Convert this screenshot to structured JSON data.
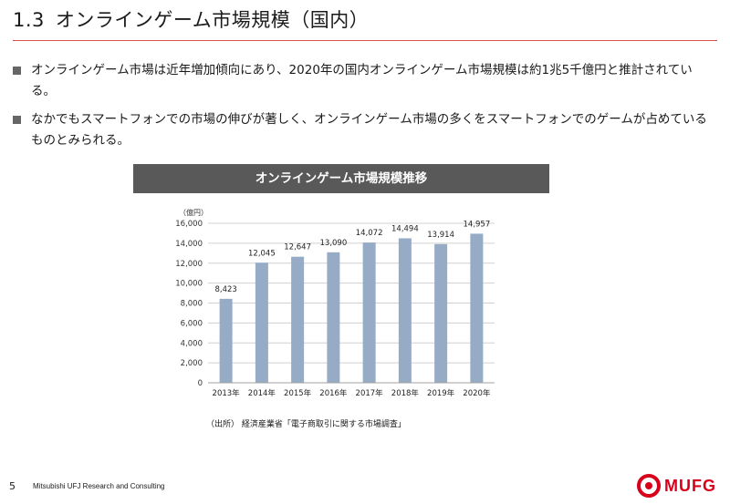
{
  "header": {
    "section_number": "1.3",
    "title": "オンラインゲーム市場規模（国内）"
  },
  "bullets": [
    "オンラインゲーム市場は近年増加傾向にあり、2020年の国内オンラインゲーム市場規模は約1兆5千億円と推計されている。",
    "なかでもスマートフォンでの市場の伸びが著しく、オンラインゲーム市場の多くをスマートフォンでのゲームが占めているものとみられる。"
  ],
  "chart_header": "オンラインゲーム市場規模推移",
  "chart_data": {
    "type": "bar",
    "title": "オンラインゲーム市場規模推移",
    "ylabel": "（億円）",
    "xlabel": "",
    "categories": [
      "2013年",
      "2014年",
      "2015年",
      "2016年",
      "2017年",
      "2018年",
      "2019年",
      "2020年"
    ],
    "values": [
      8423,
      12045,
      12647,
      13090,
      14072,
      14494,
      13914,
      14957
    ],
    "value_labels": [
      "8,423",
      "12,045",
      "12,647",
      "13,090",
      "14,072",
      "14,494",
      "13,914",
      "14,957"
    ],
    "ylim": [
      0,
      16000
    ],
    "yticks": [
      "0",
      "2,000",
      "4,000",
      "6,000",
      "8,000",
      "10,000",
      "12,000",
      "14,000",
      "16,000"
    ],
    "grid": true,
    "bar_color": "#96abc5"
  },
  "source": "（出所） 経済産業省「電子商取引に関する市場調査」",
  "footer": {
    "page_number": "5",
    "company": "Mitsubishi UFJ Research and Consulting",
    "logo_text": "MUFG"
  },
  "colors": {
    "accent_rule": "#d9534f",
    "header_bg": "#595959",
    "logo_red": "#d9001b"
  }
}
